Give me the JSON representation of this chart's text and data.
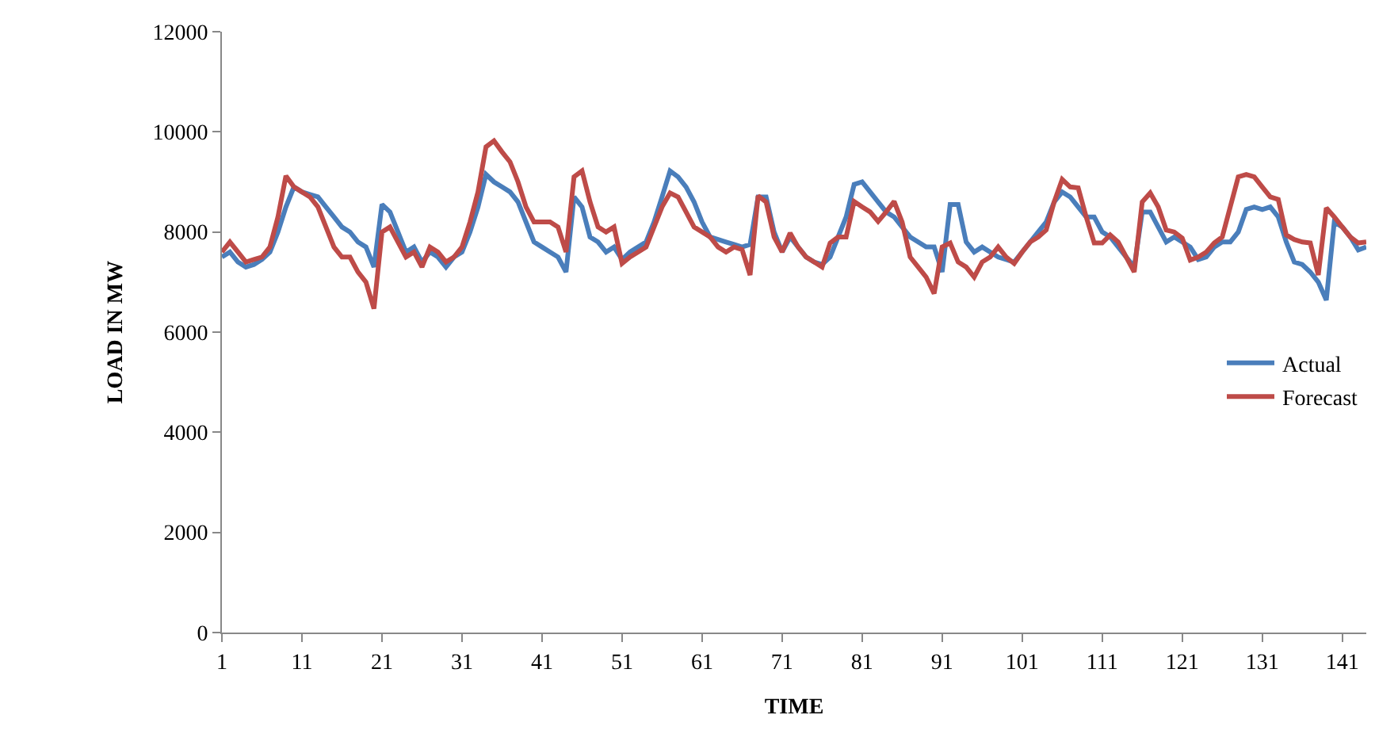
{
  "chart_data": {
    "type": "line",
    "xlabel": "TIME",
    "ylabel": "LOAD IN MW",
    "x": [
      1,
      2,
      3,
      4,
      5,
      6,
      7,
      8,
      9,
      10,
      11,
      12,
      13,
      14,
      15,
      16,
      17,
      18,
      19,
      20,
      21,
      22,
      23,
      24,
      25,
      26,
      27,
      28,
      29,
      30,
      31,
      32,
      33,
      34,
      35,
      36,
      37,
      38,
      39,
      40,
      41,
      42,
      43,
      44,
      45,
      46,
      47,
      48,
      49,
      50,
      51,
      52,
      53,
      54,
      55,
      56,
      57,
      58,
      59,
      60,
      61,
      62,
      63,
      64,
      65,
      66,
      67,
      68,
      69,
      70,
      71,
      72,
      73,
      74,
      75,
      76,
      77,
      78,
      79,
      80,
      81,
      82,
      83,
      84,
      85,
      86,
      87,
      88,
      89,
      90,
      91,
      92,
      93,
      94,
      95,
      96,
      97,
      98,
      99,
      100,
      101,
      102,
      103,
      104,
      105,
      106,
      107,
      108,
      109,
      110,
      111,
      112,
      113,
      114,
      115,
      116,
      117,
      118,
      119,
      120,
      121,
      122,
      123,
      124,
      125,
      126,
      127,
      128,
      129,
      130,
      131,
      132,
      133,
      134,
      135,
      136,
      137,
      138,
      139,
      140,
      141,
      142,
      143,
      144
    ],
    "series": [
      {
        "name": "Actual",
        "color": "#4a7ebb",
        "values": [
          7500,
          7600,
          7400,
          7300,
          7350,
          7450,
          7600,
          8000,
          8500,
          8900,
          8800,
          8750,
          8700,
          8500,
          8300,
          8100,
          8000,
          7800,
          7700,
          7300,
          8550,
          8400,
          8000,
          7600,
          7700,
          7400,
          7600,
          7500,
          7300,
          7500,
          7600,
          8000,
          8500,
          9150,
          9000,
          8900,
          8800,
          8600,
          8200,
          7800,
          7700,
          7600,
          7500,
          7200,
          8700,
          8500,
          7900,
          7800,
          7600,
          7700,
          7450,
          7600,
          7700,
          7800,
          8200,
          8700,
          9220,
          9100,
          8900,
          8600,
          8200,
          7900,
          7850,
          7800,
          7750,
          7700,
          7750,
          8700,
          8700,
          8000,
          7600,
          7900,
          7700,
          7500,
          7400,
          7350,
          7500,
          7900,
          8300,
          8950,
          9000,
          8800,
          8600,
          8400,
          8300,
          8100,
          7900,
          7800,
          7700,
          7700,
          7200,
          8550,
          8550,
          7800,
          7600,
          7700,
          7600,
          7500,
          7450,
          7400,
          7600,
          7800,
          8000,
          8200,
          8600,
          8800,
          8700,
          8500,
          8300,
          8300,
          8000,
          7900,
          7700,
          7500,
          7300,
          8400,
          8400,
          8100,
          7800,
          7900,
          7800,
          7700,
          7450,
          7500,
          7700,
          7800,
          7800,
          8000,
          8450,
          8500,
          8450,
          8500,
          8300,
          7800,
          7400,
          7350,
          7200,
          7000,
          6640,
          8200,
          8100,
          7900,
          7640,
          7700
        ]
      },
      {
        "name": "Forecast",
        "color": "#be4b48",
        "values": [
          7600,
          7800,
          7600,
          7400,
          7450,
          7500,
          7700,
          8300,
          9120,
          8900,
          8800,
          8700,
          8500,
          8100,
          7700,
          7500,
          7500,
          7200,
          7000,
          6470,
          8000,
          8100,
          7800,
          7500,
          7600,
          7300,
          7700,
          7600,
          7400,
          7500,
          7700,
          8200,
          8800,
          9700,
          9820,
          9600,
          9400,
          9000,
          8500,
          8200,
          8200,
          8200,
          8100,
          7600,
          9100,
          9220,
          8600,
          8100,
          8000,
          8100,
          7370,
          7500,
          7600,
          7700,
          8100,
          8500,
          8780,
          8700,
          8400,
          8100,
          8000,
          7900,
          7700,
          7600,
          7700,
          7650,
          7140,
          8720,
          8600,
          7900,
          7600,
          7980,
          7700,
          7500,
          7400,
          7300,
          7780,
          7900,
          7900,
          8610,
          8500,
          8400,
          8210,
          8400,
          8610,
          8200,
          7500,
          7300,
          7100,
          6770,
          7700,
          7780,
          7400,
          7300,
          7100,
          7400,
          7500,
          7700,
          7500,
          7370,
          7600,
          7800,
          7900,
          8040,
          8600,
          9050,
          8900,
          8880,
          8300,
          7780,
          7780,
          7940,
          7800,
          7500,
          7200,
          8600,
          8780,
          8500,
          8040,
          8000,
          7880,
          7440,
          7500,
          7600,
          7780,
          7900,
          8500,
          9100,
          9150,
          9100,
          8900,
          8700,
          8650,
          7940,
          7850,
          7800,
          7780,
          7140,
          8480,
          8300,
          8100,
          7900,
          7780,
          7800
        ]
      }
    ],
    "xlim": [
      1,
      144
    ],
    "xticks": [
      1,
      11,
      21,
      31,
      41,
      51,
      61,
      71,
      81,
      91,
      101,
      111,
      121,
      131,
      141
    ],
    "ylim": [
      0,
      12000
    ],
    "yticks": [
      0,
      2000,
      4000,
      6000,
      8000,
      10000,
      12000
    ],
    "legend": "right",
    "marker": "none",
    "line_style": "solid"
  }
}
